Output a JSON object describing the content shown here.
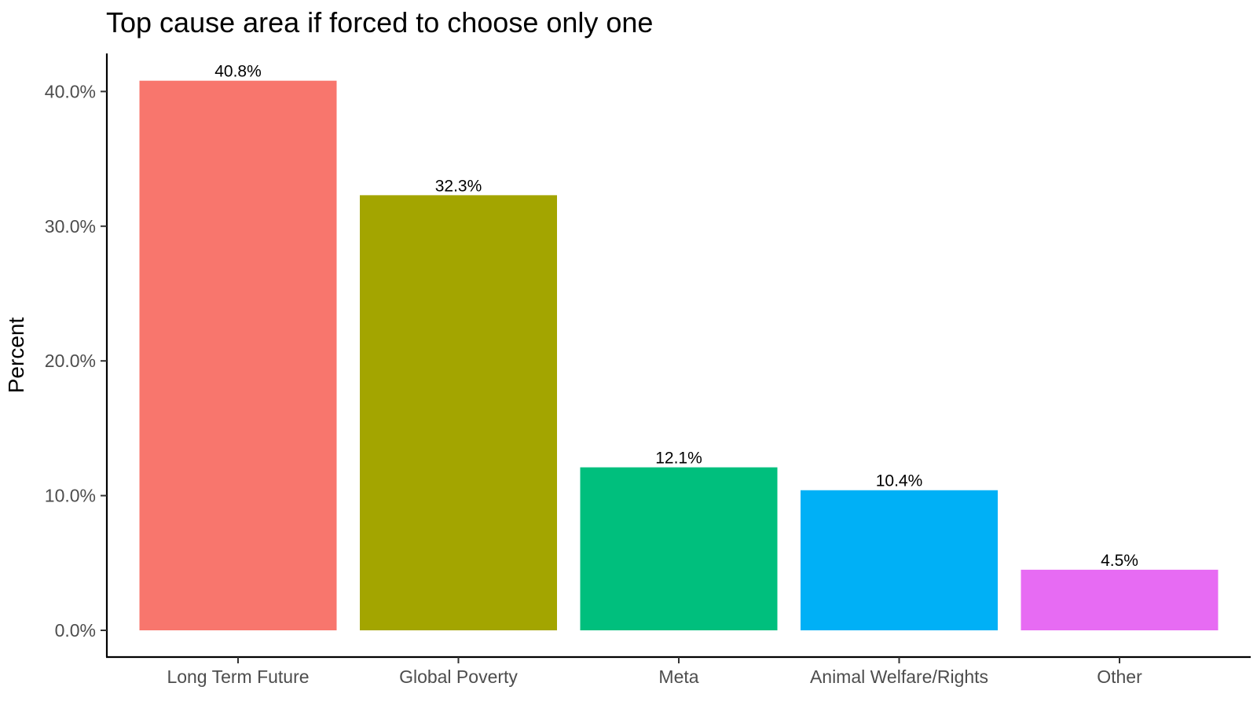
{
  "chart_data": {
    "type": "bar",
    "title": "Top cause area if forced to choose only one",
    "xlabel": "",
    "ylabel": "Percent",
    "categories": [
      "Long Term Future",
      "Global Poverty",
      "Meta",
      "Animal Welfare/Rights",
      "Other"
    ],
    "values": [
      40.8,
      32.3,
      12.1,
      10.4,
      4.5
    ],
    "value_labels": [
      "40.8%",
      "32.3%",
      "12.1%",
      "10.4%",
      "4.5%"
    ],
    "colors": [
      "#F8766D",
      "#A3A500",
      "#00BF7D",
      "#00B0F6",
      "#E76BF3"
    ],
    "yticks": [
      0,
      10,
      20,
      30,
      40
    ],
    "ytick_labels": [
      "0.0%",
      "10.0%",
      "20.0%",
      "30.0%",
      "40.0%"
    ],
    "ylim": [
      0,
      43
    ],
    "grid": false,
    "legend": "none"
  }
}
